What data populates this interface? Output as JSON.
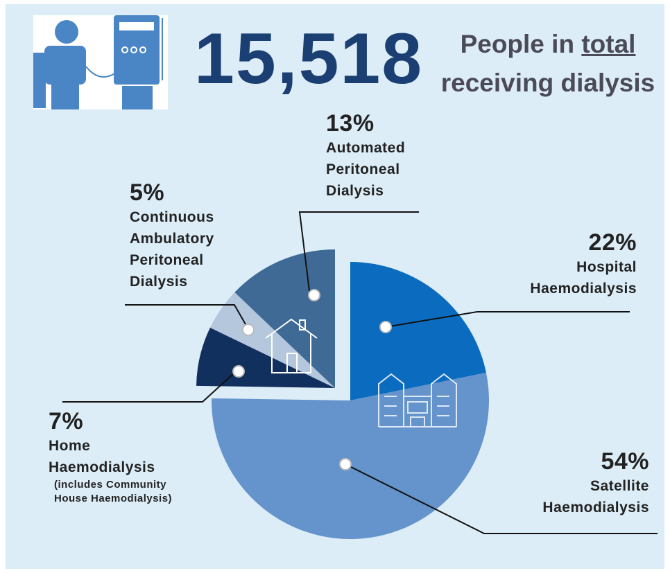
{
  "chart_data": {
    "type": "pie",
    "headline": "15,518",
    "subtitle_parts": [
      "People in",
      "total",
      "receiving dialysis"
    ],
    "categories": [
      "Hospital Haemodialysis",
      "Satellite Haemodialysis",
      "Home Haemodialysis",
      "Continuous Ambulatory Peritoneal Dialysis",
      "Automated Peritoneal Dialysis"
    ],
    "values": [
      22,
      54,
      7,
      5,
      13
    ],
    "value_labels": [
      "22%",
      "54%",
      "7%",
      "5%",
      "13%"
    ],
    "colors": [
      "#0b6cbf",
      "#6593cb",
      "#12305e",
      "#b5c7dc",
      "#3f6a96"
    ],
    "annotation": "(includes Community House Haemodialysis)"
  }
}
